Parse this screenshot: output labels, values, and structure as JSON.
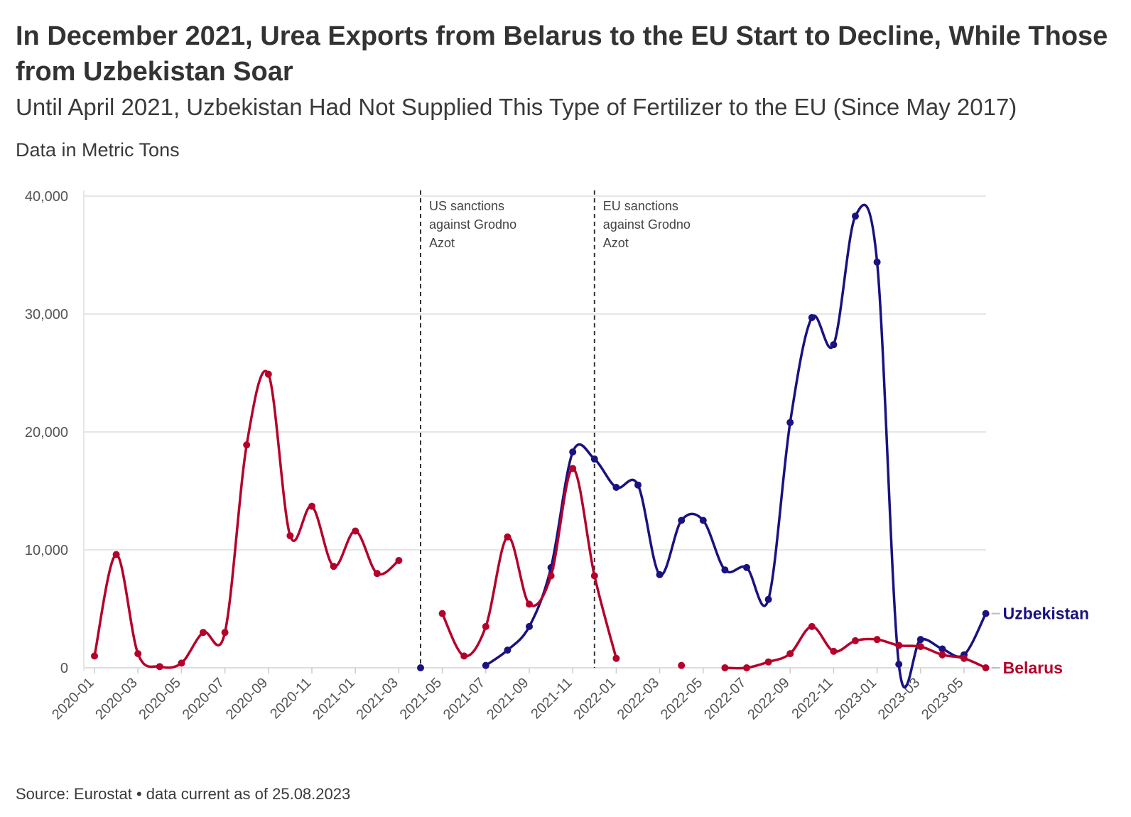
{
  "title": "In December 2021, Urea Exports from Belarus to the EU Start to Decline, While Those from Uzbekistan Soar",
  "subtitle": "Until April 2021, Uzbekistan Had Not Supplied This Type of Fertilizer to the EU (Since May 2017)",
  "unit_note": "Data in Metric Tons",
  "source": "Source: Eurostat • data current as of 25.08.2023",
  "chart_data": {
    "type": "line",
    "x": [
      "2020-01",
      "2020-02",
      "2020-03",
      "2020-04",
      "2020-05",
      "2020-06",
      "2020-07",
      "2020-08",
      "2020-09",
      "2020-10",
      "2020-11",
      "2020-12",
      "2021-01",
      "2021-02",
      "2021-03",
      "2021-04",
      "2021-05",
      "2021-06",
      "2021-07",
      "2021-08",
      "2021-09",
      "2021-10",
      "2021-11",
      "2021-12",
      "2022-01",
      "2022-02",
      "2022-03",
      "2022-04",
      "2022-05",
      "2022-06",
      "2022-07",
      "2022-08",
      "2022-09",
      "2022-10",
      "2022-11",
      "2022-12",
      "2023-01",
      "2023-02",
      "2023-03",
      "2023-04",
      "2023-05",
      "2023-06"
    ],
    "x_tick_labels": [
      "2020-01",
      "2020-03",
      "2020-05",
      "2020-07",
      "2020-09",
      "2020-11",
      "2021-01",
      "2021-03",
      "2021-05",
      "2021-07",
      "2021-09",
      "2021-11",
      "2022-01",
      "2022-03",
      "2022-05",
      "2022-07",
      "2022-09",
      "2022-11",
      "2023-01",
      "2023-03",
      "2023-05"
    ],
    "y_ticks": [
      "0",
      "10,000",
      "20,000",
      "30,000",
      "40,000"
    ],
    "ylim": [
      0,
      40000
    ],
    "grid": "horizontal",
    "legend": "direct labels at right end of lines",
    "series": [
      {
        "name": "Uzbekistan",
        "color": "#1a1280",
        "values": [
          null,
          null,
          null,
          null,
          null,
          null,
          null,
          null,
          null,
          null,
          null,
          null,
          null,
          null,
          null,
          0,
          null,
          null,
          200,
          1500,
          3500,
          8500,
          18300,
          17700,
          15300,
          15500,
          7900,
          12500,
          12500,
          8300,
          8500,
          5800,
          20800,
          29700,
          27400,
          38300,
          34400,
          300,
          2400,
          1600,
          1100,
          4600
        ]
      },
      {
        "name": "Belarus",
        "color": "#b5002a",
        "values": [
          1000,
          9600,
          1200,
          100,
          400,
          3000,
          3000,
          18900,
          24900,
          11200,
          13700,
          8600,
          11600,
          8000,
          9100,
          null,
          4600,
          1000,
          3500,
          11100,
          5400,
          7800,
          16900,
          7800,
          800,
          null,
          null,
          200,
          null,
          0,
          0,
          500,
          1200,
          3500,
          1400,
          2300,
          2400,
          1900,
          1800,
          1100,
          800,
          0
        ]
      }
    ],
    "annotations": [
      {
        "x": "2021-04",
        "lines": [
          "US sanctions",
          "against Grodno",
          "Azot"
        ]
      },
      {
        "x": "2021-12",
        "lines": [
          "EU sanctions",
          "against Grodno",
          "Azot"
        ]
      }
    ]
  }
}
